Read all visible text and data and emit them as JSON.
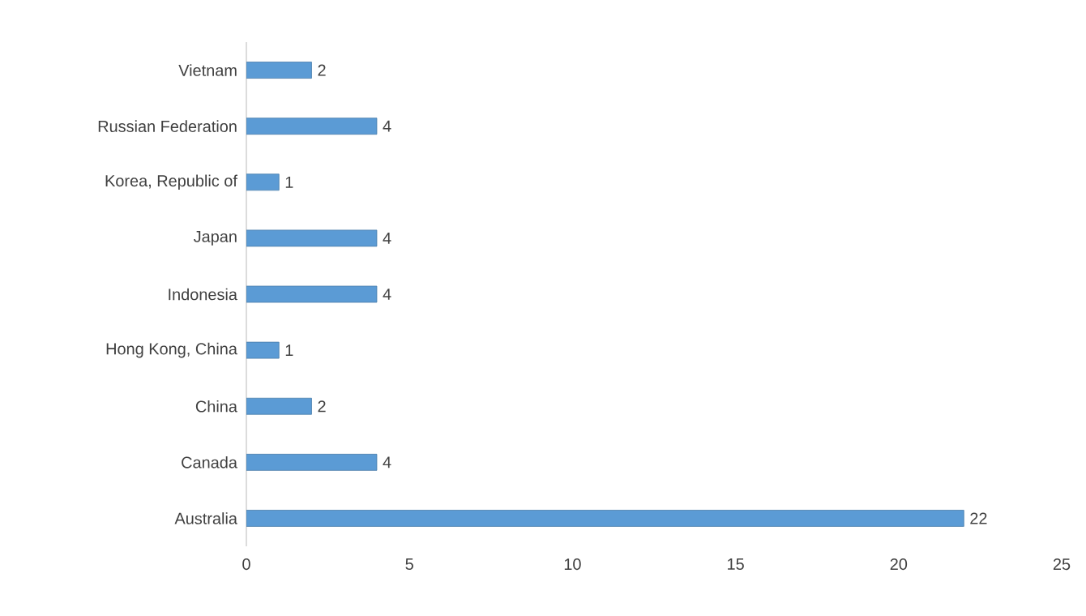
{
  "chart_data": {
    "type": "bar",
    "orientation": "horizontal",
    "categories": [
      "Vietnam",
      "Russian Federation",
      "Korea, Republic of",
      "Japan",
      "Indonesia",
      "Hong Kong, China",
      "China",
      "Canada",
      "Australia"
    ],
    "values": [
      2,
      4,
      1,
      4,
      4,
      1,
      2,
      4,
      22
    ],
    "color": "#5b9bd5",
    "xlim": [
      0,
      25
    ],
    "xticks": [
      0,
      5,
      10,
      15,
      20,
      25
    ],
    "data_labels": true
  }
}
